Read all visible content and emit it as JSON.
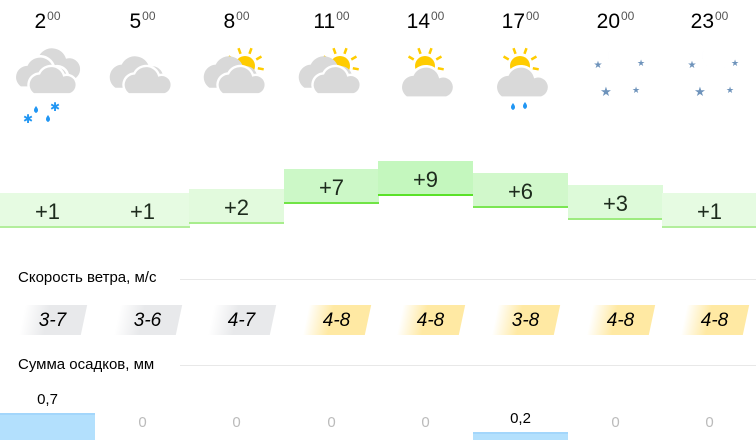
{
  "hours": [
    {
      "hour": "2",
      "minutes": "00",
      "icon": "cloudy-rain-snow-icon",
      "temp": "+1",
      "t": 1,
      "wind": "3-7",
      "wind_level": "low",
      "precip": "0,7",
      "precip_mm": 0.7
    },
    {
      "hour": "5",
      "minutes": "00",
      "icon": "cloudy-night-icon",
      "temp": "+1",
      "t": 1,
      "wind": "3-6",
      "wind_level": "low",
      "precip": "0",
      "precip_mm": 0
    },
    {
      "hour": "8",
      "minutes": "00",
      "icon": "cloudy-sun-icon",
      "temp": "+2",
      "t": 2,
      "wind": "4-7",
      "wind_level": "low",
      "precip": "0",
      "precip_mm": 0
    },
    {
      "hour": "11",
      "minutes": "00",
      "icon": "cloudy-sun-icon",
      "temp": "+7",
      "t": 7,
      "wind": "4-8",
      "wind_level": "moderate",
      "precip": "0",
      "precip_mm": 0
    },
    {
      "hour": "14",
      "minutes": "00",
      "icon": "partly-sunny-icon",
      "temp": "+9",
      "t": 9,
      "wind": "4-8",
      "wind_level": "moderate",
      "precip": "0",
      "precip_mm": 0
    },
    {
      "hour": "17",
      "minutes": "00",
      "icon": "partly-sunny-rain-icon",
      "temp": "+6",
      "t": 6,
      "wind": "3-8",
      "wind_level": "moderate",
      "precip": "0,2",
      "precip_mm": 0.2
    },
    {
      "hour": "20",
      "minutes": "00",
      "icon": "clear-night-icon",
      "temp": "+3",
      "t": 3,
      "wind": "4-8",
      "wind_level": "moderate",
      "precip": "0",
      "precip_mm": 0
    },
    {
      "hour": "23",
      "minutes": "00",
      "icon": "clear-night-icon",
      "temp": "+1",
      "t": 1,
      "wind": "4-8",
      "wind_level": "moderate",
      "precip": "0",
      "precip_mm": 0
    }
  ],
  "wind_label": "Скорость ветра, м/с",
  "precip_label": "Сумма осадков, мм",
  "colors": {
    "cloud": "#d9d9d9",
    "sun": "#ffcc00",
    "moon": "#6e93bb",
    "rain": "#2196f3",
    "wind_low": "#e8e9eb",
    "wind_moderate": "#ffe9a3",
    "precip": "#b3e0fd"
  }
}
